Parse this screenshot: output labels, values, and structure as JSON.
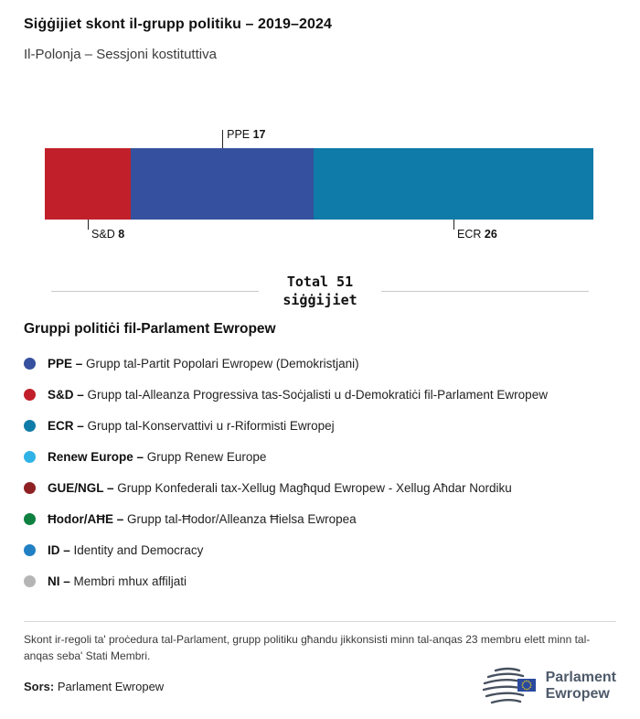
{
  "page": {
    "title": "Siġġijiet skont il-grupp politiku – 2019–2024",
    "subtitle": "Il-Polonja – Sessjoni kostituttiva"
  },
  "chart_data": {
    "type": "bar",
    "variant": "horizontal-stacked",
    "title": "Siġġijiet skont il-grupp politiku – 2019–2024",
    "subtitle": "Il-Polonja – Sessjoni kostituttiva",
    "total": 51,
    "total_label_line1": "Total 51",
    "total_label_line2": "siġġijiet",
    "series": [
      {
        "name": "S&D",
        "value": 8,
        "color": "#c1202a",
        "label_position": "below"
      },
      {
        "name": "PPE",
        "value": 17,
        "color": "#35509e",
        "label_position": "above"
      },
      {
        "name": "ECR",
        "value": 26,
        "color": "#0f7ba8",
        "label_position": "below"
      }
    ]
  },
  "legend": {
    "heading": "Gruppi politiċi fil-Parlament Ewropew",
    "items": [
      {
        "id": "ppe",
        "abbr": "PPE –",
        "desc": "Grupp tal-Partit Popolari Ewropew (Demokristjani)",
        "color": "#35509e"
      },
      {
        "id": "sd",
        "abbr": "S&D –",
        "desc": "Grupp tal-Alleanza Progressiva tas-Soċjalisti u d-Demokratiċi fil-Parlament Ewropew",
        "color": "#c1202a"
      },
      {
        "id": "ecr",
        "abbr": "ECR –",
        "desc": "Grupp tal-Konservattivi u r-Riformisti Ewropej",
        "color": "#0f7ba8"
      },
      {
        "id": "renew",
        "abbr": "Renew Europe –",
        "desc": "Grupp Renew Europe",
        "color": "#30b2e6"
      },
      {
        "id": "gue-ngl",
        "abbr": "GUE/NGL –",
        "desc": "Grupp Konfederali tax-Xellug Magħqud Ewropew - Xellug Aħdar Nordiku",
        "color": "#8e2023"
      },
      {
        "id": "hodor-ahe",
        "abbr": "Ħodor/AĦE –",
        "desc": "Grupp tal-Ħodor/Alleanza Ħielsa Ewropea",
        "color": "#0e8140"
      },
      {
        "id": "id",
        "abbr": "ID –",
        "desc": "Identity and Democracy",
        "color": "#2180c4"
      },
      {
        "id": "ni",
        "abbr": "NI –",
        "desc": "Membri mhux affiljati",
        "color": "#b5b5b5"
      }
    ]
  },
  "footnote": "Skont ir-regoli ta' proċedura tal-Parlament, grupp politiku għandu jikkonsisti minn tal-anqas 23 membru elett minn tal-anqas seba' Stati Membri.",
  "source": {
    "label": "Sors:",
    "value": "Parlament Ewropew"
  },
  "logo": {
    "line1": "Parlament",
    "line2": "Ewropew"
  }
}
